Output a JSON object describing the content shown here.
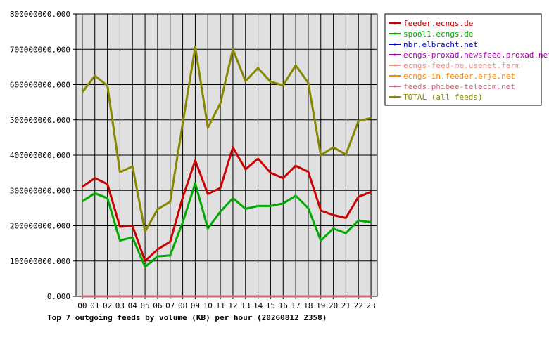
{
  "chart_data": {
    "type": "line",
    "title": "Top 7 outgoing feeds by volume (KB) per hour (20260812 2358)",
    "xlabel": "",
    "ylabel": "",
    "categories": [
      "00",
      "01",
      "02",
      "03",
      "04",
      "05",
      "06",
      "07",
      "08",
      "09",
      "10",
      "11",
      "12",
      "13",
      "14",
      "15",
      "16",
      "17",
      "18",
      "19",
      "20",
      "21",
      "22",
      "23"
    ],
    "ylim": [
      0,
      800000000
    ],
    "yticks": [
      "0.000",
      "100000000.000",
      "200000000.000",
      "300000000.000",
      "400000000.000",
      "500000000.000",
      "600000000.000",
      "700000000.000",
      "800000000.000"
    ],
    "grid": true,
    "legend_position": "top-right",
    "series": [
      {
        "name": "feeder.ecngs.de",
        "color": "#cc0000",
        "values": [
          310000000,
          335000000,
          318000000,
          197000000,
          199000000,
          100000000,
          133000000,
          155000000,
          280000000,
          385000000,
          290000000,
          307000000,
          422000000,
          360000000,
          390000000,
          350000000,
          335000000,
          370000000,
          353000000,
          243000000,
          230000000,
          222000000,
          282000000,
          296000000
        ]
      },
      {
        "name": "spool1.ecngs.de",
        "color": "#00aa00",
        "values": [
          269000000,
          292000000,
          278000000,
          158000000,
          167000000,
          83000000,
          113000000,
          116000000,
          210000000,
          320000000,
          192000000,
          240000000,
          278000000,
          248000000,
          256000000,
          256000000,
          263000000,
          285000000,
          250000000,
          158000000,
          192000000,
          179000000,
          215000000,
          210000000
        ]
      },
      {
        "name": "nbr.elbracht.net",
        "color": "#0000cc",
        "values": [
          0,
          0,
          0,
          0,
          0,
          0,
          0,
          0,
          0,
          0,
          0,
          0,
          0,
          0,
          0,
          0,
          0,
          0,
          0,
          0,
          0,
          0,
          0,
          0
        ]
      },
      {
        "name": "ecngs-proxad.newsfeed.proxad.net",
        "color": "#aa00aa",
        "values": [
          0,
          0,
          0,
          0,
          0,
          0,
          0,
          0,
          0,
          0,
          0,
          0,
          0,
          0,
          0,
          0,
          0,
          0,
          0,
          0,
          0,
          0,
          0,
          0
        ]
      },
      {
        "name": "ecngs-feed-me.usenet.farm",
        "color": "#ff8888",
        "values": [
          0,
          0,
          0,
          0,
          0,
          0,
          0,
          0,
          0,
          0,
          0,
          0,
          0,
          0,
          0,
          0,
          0,
          0,
          0,
          0,
          0,
          0,
          0,
          0
        ]
      },
      {
        "name": "ecngs-in.feeder.erje.net",
        "color": "#ff8800",
        "values": [
          0,
          0,
          0,
          0,
          0,
          0,
          0,
          0,
          0,
          0,
          0,
          0,
          0,
          0,
          0,
          0,
          0,
          0,
          0,
          0,
          0,
          0,
          0,
          0
        ]
      },
      {
        "name": "feeds.phibee-telecom.net",
        "color": "#cc6677",
        "values": [
          0,
          0,
          0,
          0,
          0,
          0,
          0,
          0,
          0,
          0,
          0,
          0,
          0,
          0,
          0,
          0,
          0,
          0,
          0,
          0,
          0,
          0,
          0,
          0
        ]
      },
      {
        "name": "TOTAL (all feeds)",
        "color": "#888800",
        "values": [
          578000000,
          625000000,
          597000000,
          352000000,
          368000000,
          183000000,
          247000000,
          268000000,
          490000000,
          707000000,
          478000000,
          547000000,
          700000000,
          610000000,
          647000000,
          608000000,
          598000000,
          655000000,
          605000000,
          400000000,
          422000000,
          402000000,
          497000000,
          505000000
        ]
      }
    ]
  }
}
